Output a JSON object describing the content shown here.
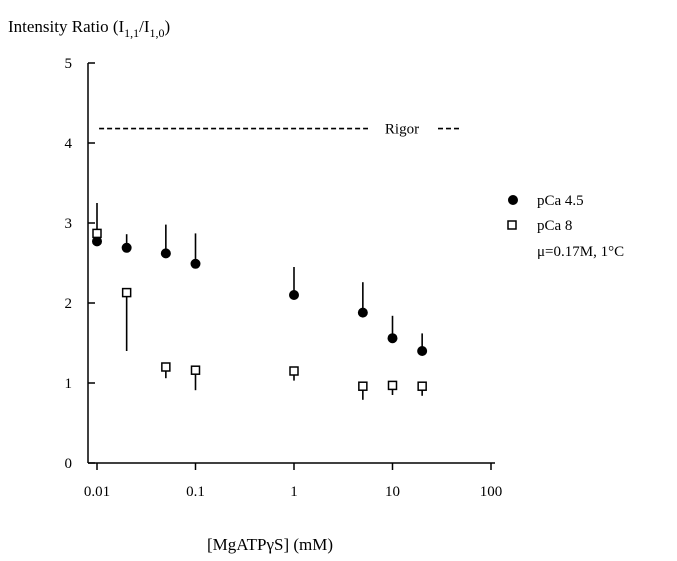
{
  "chart_data": {
    "type": "scatter",
    "ylabel_parts": {
      "prefix": "Intensity Ratio (I",
      "sub1": "1,1",
      "slash": "/I",
      "sub2": "1,0",
      "suffix": ")"
    },
    "xlabel": "[MgATPγS] (mM)",
    "x_scale": "log",
    "xlim": [
      0.01,
      100
    ],
    "ylim": [
      0,
      5
    ],
    "x_ticks": [
      0.01,
      0.1,
      1,
      10,
      100
    ],
    "x_tick_labels": [
      "0.01",
      "0.1",
      "1",
      "10",
      "100"
    ],
    "y_ticks": [
      0,
      1,
      2,
      3,
      4,
      5
    ],
    "y_tick_labels": [
      "0",
      "1",
      "2",
      "3",
      "4",
      "5"
    ],
    "series": [
      {
        "name": "pCa 4.5",
        "marker": "filled-circle",
        "error_direction": "up",
        "points": [
          {
            "x": 0.01,
            "y": 2.77,
            "err": 0.48
          },
          {
            "x": 0.02,
            "y": 2.69,
            "err": 0.17
          },
          {
            "x": 0.05,
            "y": 2.62,
            "err": 0.36
          },
          {
            "x": 0.1,
            "y": 2.49,
            "err": 0.38
          },
          {
            "x": 1,
            "y": 2.1,
            "err": 0.35
          },
          {
            "x": 5,
            "y": 1.88,
            "err": 0.38
          },
          {
            "x": 10,
            "y": 1.56,
            "err": 0.28
          },
          {
            "x": 20,
            "y": 1.4,
            "err": 0.22
          }
        ]
      },
      {
        "name": "pCa 8",
        "marker": "open-square",
        "error_direction": "down",
        "points": [
          {
            "x": 0.01,
            "y": 2.87,
            "err": 0.08
          },
          {
            "x": 0.02,
            "y": 2.13,
            "err": 0.73
          },
          {
            "x": 0.05,
            "y": 1.2,
            "err": 0.14
          },
          {
            "x": 0.1,
            "y": 1.16,
            "err": 0.25
          },
          {
            "x": 1,
            "y": 1.15,
            "err": 0.12
          },
          {
            "x": 5,
            "y": 0.96,
            "err": 0.17
          },
          {
            "x": 10,
            "y": 0.97,
            "err": 0.12
          },
          {
            "x": 20,
            "y": 0.96,
            "err": 0.12
          }
        ]
      }
    ],
    "reference_line": {
      "label": "Rigor",
      "y": 4.18,
      "x_start": 0.0105,
      "x_end": 50
    },
    "legend": {
      "placement": "right",
      "entries": [
        {
          "label": "pCa 4.5",
          "marker": "filled-circle"
        },
        {
          "label": "pCa 8",
          "marker": "open-square"
        }
      ],
      "condition_note": "μ=0.17M, 1°C"
    },
    "grid": false
  }
}
